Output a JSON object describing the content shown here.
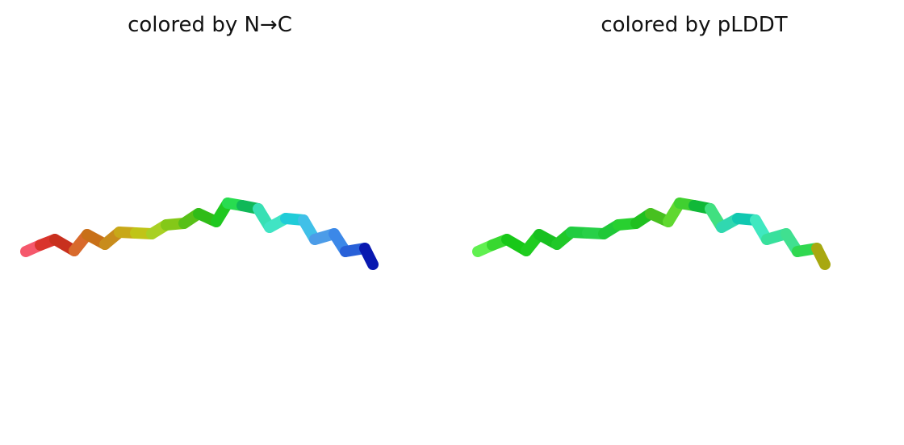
{
  "panels": [
    {
      "id": "n-to-c",
      "title": "colored by N→C",
      "segment_colors": [
        "#f5586c",
        "#d9342c",
        "#c8301e",
        "#d86a2c",
        "#c87018",
        "#c88c1c",
        "#c8a818",
        "#c0c418",
        "#a8d024",
        "#84c818",
        "#58c018",
        "#30bc18",
        "#20c820",
        "#28dc50",
        "#10b858",
        "#38e0b4",
        "#40e4c4",
        "#20ccd8",
        "#40c0e8",
        "#4c9ce8",
        "#3c88e8",
        "#2860d8",
        "#0818b0"
      ]
    },
    {
      "id": "plddt",
      "title": "colored by pLDDT",
      "segment_colors": [
        "#60f050",
        "#38d830",
        "#18c818",
        "#20cc20",
        "#18c020",
        "#20c828",
        "#20cc40",
        "#28d048",
        "#20c838",
        "#28d030",
        "#20c020",
        "#48c020",
        "#60d830",
        "#40d030",
        "#10b838",
        "#40e080",
        "#30d8b0",
        "#10c8b0",
        "#40e8c0",
        "#38e09c",
        "#40e090",
        "#30d850",
        "#a8a810"
      ]
    }
  ]
}
